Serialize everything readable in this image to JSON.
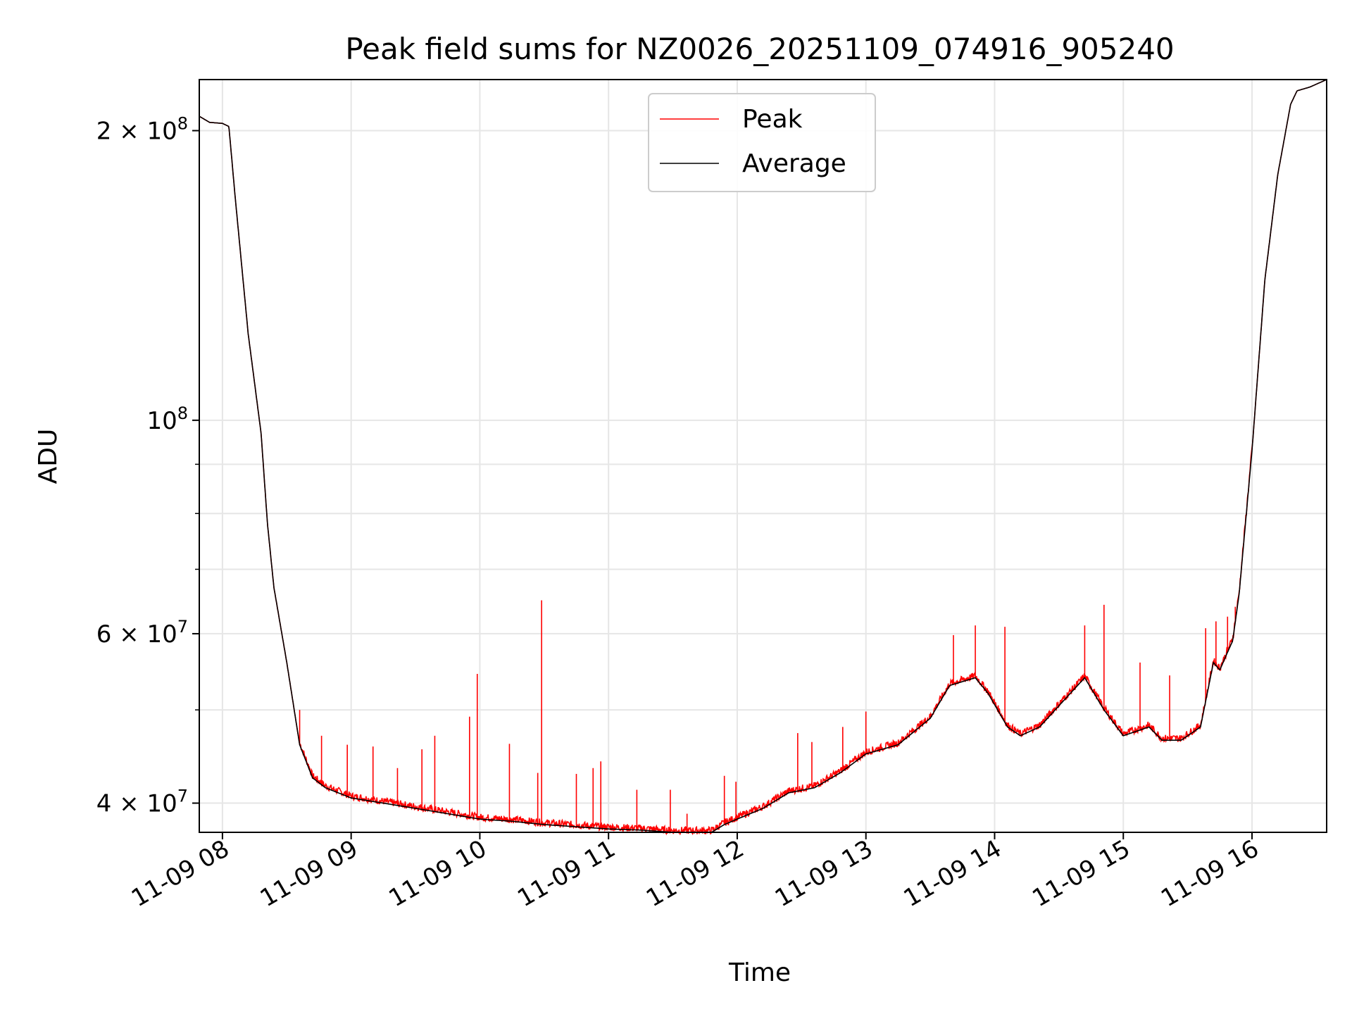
{
  "chart_data": {
    "type": "line",
    "title": "Peak field sums for NZ0026_20251109_074916_905240",
    "xlabel": "Time",
    "ylabel": "ADU",
    "yscale": "log",
    "xlim": [
      7.82,
      16.58
    ],
    "ylim": [
      37300000,
      226000000
    ],
    "grid": true,
    "legend_position": "upper-center",
    "x_ticks": [
      {
        "value": 8,
        "label": "11-09 08"
      },
      {
        "value": 9,
        "label": "11-09 09"
      },
      {
        "value": 10,
        "label": "11-09 10"
      },
      {
        "value": 11,
        "label": "11-09 11"
      },
      {
        "value": 12,
        "label": "11-09 12"
      },
      {
        "value": 13,
        "label": "11-09 13"
      },
      {
        "value": 14,
        "label": "11-09 14"
      },
      {
        "value": 15,
        "label": "11-09 15"
      },
      {
        "value": 16,
        "label": "11-09 16"
      }
    ],
    "y_major_ticks": [
      {
        "value": 40000000,
        "mant": "4 × 10",
        "exp": "7"
      },
      {
        "value": 60000000,
        "mant": "6 × 10",
        "exp": "7"
      },
      {
        "value": 100000000,
        "mant": "10",
        "exp": "8"
      },
      {
        "value": 200000000,
        "mant": "2 × 10",
        "exp": "8"
      }
    ],
    "y_minor_ticks": [
      50000000,
      70000000,
      80000000,
      90000000
    ],
    "series": [
      {
        "name": "Average",
        "color": "#000000",
        "x": [
          7.82,
          7.9,
          8.0,
          8.05,
          8.1,
          8.2,
          8.3,
          8.35,
          8.4,
          8.5,
          8.6,
          8.7,
          8.8,
          8.9,
          9.0,
          9.25,
          9.5,
          9.75,
          10.0,
          10.25,
          10.5,
          10.75,
          11.0,
          11.25,
          11.5,
          11.8,
          11.9,
          12.0,
          12.2,
          12.4,
          12.6,
          12.8,
          13.0,
          13.25,
          13.5,
          13.65,
          13.85,
          13.95,
          14.1,
          14.2,
          14.35,
          14.5,
          14.7,
          14.85,
          15.0,
          15.1,
          15.2,
          15.3,
          15.45,
          15.6,
          15.7,
          15.75,
          15.8,
          15.85,
          15.9,
          16.0,
          16.1,
          16.2,
          16.3,
          16.35,
          16.45,
          16.58
        ],
        "y": [
          207000000,
          204000000,
          203500000,
          202000000,
          170000000,
          123000000,
          97000000,
          78000000,
          67000000,
          56000000,
          46000000,
          42500000,
          41500000,
          41000000,
          40500000,
          40000000,
          39500000,
          39000000,
          38500000,
          38300000,
          38000000,
          37800000,
          37600000,
          37500000,
          37300000,
          37300000,
          38000000,
          38500000,
          39500000,
          41000000,
          41500000,
          43000000,
          45000000,
          46000000,
          49000000,
          53000000,
          54000000,
          52000000,
          48000000,
          47000000,
          48000000,
          50500000,
          54000000,
          50000000,
          47000000,
          47500000,
          48000000,
          46500000,
          46500000,
          48000000,
          56000000,
          55000000,
          57000000,
          59000000,
          66000000,
          93000000,
          140000000,
          180000000,
          213000000,
          220000000,
          222000000,
          226000000
        ]
      },
      {
        "name": "Peak",
        "color": "#ff0000",
        "spikes": [
          {
            "x": 8.6,
            "y": 50000000
          },
          {
            "x": 8.77,
            "y": 47000000
          },
          {
            "x": 8.97,
            "y": 46000000
          },
          {
            "x": 9.17,
            "y": 45800000
          },
          {
            "x": 9.36,
            "y": 43500000
          },
          {
            "x": 9.55,
            "y": 45500000
          },
          {
            "x": 9.65,
            "y": 47000000
          },
          {
            "x": 9.92,
            "y": 49200000
          },
          {
            "x": 9.98,
            "y": 54500000
          },
          {
            "x": 10.23,
            "y": 46100000
          },
          {
            "x": 10.45,
            "y": 43000000
          },
          {
            "x": 10.48,
            "y": 65000000
          },
          {
            "x": 10.75,
            "y": 42900000
          },
          {
            "x": 10.88,
            "y": 43500000
          },
          {
            "x": 10.94,
            "y": 44200000
          },
          {
            "x": 11.22,
            "y": 41300000
          },
          {
            "x": 11.48,
            "y": 41300000
          },
          {
            "x": 11.61,
            "y": 39000000
          },
          {
            "x": 11.9,
            "y": 42700000
          },
          {
            "x": 11.99,
            "y": 42100000
          },
          {
            "x": 12.47,
            "y": 47300000
          },
          {
            "x": 12.58,
            "y": 46300000
          },
          {
            "x": 12.82,
            "y": 48000000
          },
          {
            "x": 13.0,
            "y": 49800000
          },
          {
            "x": 13.68,
            "y": 59800000
          },
          {
            "x": 13.85,
            "y": 61200000
          },
          {
            "x": 14.08,
            "y": 61000000
          },
          {
            "x": 14.7,
            "y": 61200000
          },
          {
            "x": 14.85,
            "y": 64300000
          },
          {
            "x": 15.13,
            "y": 56000000
          },
          {
            "x": 15.36,
            "y": 54300000
          },
          {
            "x": 15.64,
            "y": 60800000
          },
          {
            "x": 15.72,
            "y": 61800000
          },
          {
            "x": 15.81,
            "y": 62500000
          },
          {
            "x": 15.87,
            "y": 64000000
          }
        ]
      }
    ]
  }
}
